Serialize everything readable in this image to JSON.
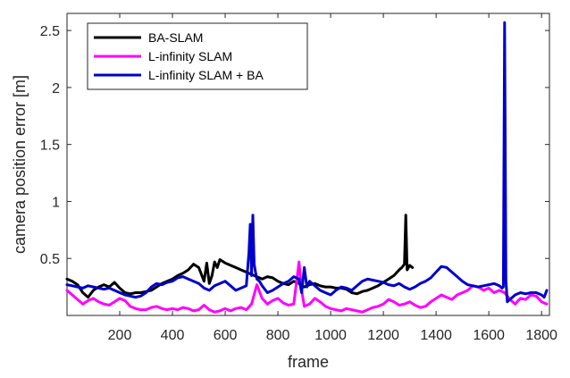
{
  "chart_data": {
    "type": "line",
    "xlabel": "frame",
    "ylabel": "camera position error [m]",
    "xlim": [
      0,
      1830
    ],
    "ylim": [
      0,
      2.65
    ],
    "xticks": [
      200,
      400,
      600,
      800,
      1000,
      1200,
      1400,
      1600,
      1800
    ],
    "yticks": [
      0.5,
      1,
      1.5,
      2,
      2.5
    ],
    "xtick_labels": [
      "200",
      "400",
      "600",
      "800",
      "1000",
      "1200",
      "1400",
      "1600",
      "1800"
    ],
    "ytick_labels": [
      "0.5",
      "1",
      "1.5",
      "2",
      "2.5"
    ],
    "grid": false,
    "legend_position": "top-left",
    "series": [
      {
        "name": "BA-SLAM",
        "color": "#000000",
        "x": [
          0,
          20,
          40,
          60,
          80,
          100,
          120,
          140,
          160,
          180,
          200,
          220,
          240,
          260,
          280,
          300,
          320,
          340,
          360,
          380,
          400,
          420,
          440,
          460,
          480,
          500,
          520,
          530,
          540,
          550,
          560,
          570,
          580,
          600,
          620,
          640,
          660,
          680,
          700,
          720,
          740,
          760,
          780,
          800,
          820,
          840,
          860,
          880,
          900,
          920,
          940,
          960,
          980,
          1000,
          1020,
          1040,
          1060,
          1080,
          1100,
          1120,
          1140,
          1160,
          1180,
          1200,
          1220,
          1240,
          1260,
          1270,
          1280,
          1285,
          1290,
          1300,
          1310
        ],
        "values": [
          0.32,
          0.3,
          0.27,
          0.2,
          0.16,
          0.22,
          0.25,
          0.27,
          0.25,
          0.29,
          0.24,
          0.2,
          0.19,
          0.2,
          0.2,
          0.21,
          0.22,
          0.25,
          0.28,
          0.3,
          0.32,
          0.35,
          0.37,
          0.4,
          0.45,
          0.42,
          0.3,
          0.46,
          0.28,
          0.35,
          0.47,
          0.42,
          0.49,
          0.46,
          0.44,
          0.42,
          0.4,
          0.38,
          0.36,
          0.34,
          0.32,
          0.34,
          0.33,
          0.3,
          0.28,
          0.27,
          0.3,
          0.28,
          0.25,
          0.27,
          0.28,
          0.26,
          0.25,
          0.25,
          0.24,
          0.24,
          0.23,
          0.2,
          0.19,
          0.21,
          0.22,
          0.24,
          0.26,
          0.29,
          0.32,
          0.35,
          0.4,
          0.42,
          0.45,
          0.88,
          0.4,
          0.44,
          0.42
        ]
      },
      {
        "name": "L-infinity SLAM",
        "color": "#ff00ff",
        "x": [
          0,
          20,
          40,
          60,
          80,
          100,
          120,
          140,
          160,
          180,
          200,
          220,
          240,
          260,
          280,
          300,
          320,
          340,
          360,
          380,
          400,
          420,
          440,
          460,
          480,
          500,
          520,
          540,
          560,
          580,
          600,
          620,
          640,
          660,
          680,
          700,
          720,
          740,
          760,
          780,
          800,
          820,
          840,
          860,
          870,
          880,
          890,
          900,
          920,
          940,
          960,
          980,
          1000,
          1020,
          1040,
          1060,
          1080,
          1100,
          1120,
          1140,
          1160,
          1180,
          1200,
          1220,
          1240,
          1260,
          1280,
          1300,
          1320,
          1340,
          1360,
          1380,
          1400,
          1420,
          1440,
          1460,
          1480,
          1500,
          1520,
          1540,
          1560,
          1580,
          1600,
          1620,
          1640,
          1660,
          1680,
          1700,
          1720,
          1740,
          1760,
          1780,
          1800,
          1820
        ],
        "values": [
          0.22,
          0.18,
          0.14,
          0.1,
          0.13,
          0.15,
          0.12,
          0.1,
          0.09,
          0.12,
          0.15,
          0.13,
          0.08,
          0.06,
          0.05,
          0.05,
          0.07,
          0.08,
          0.06,
          0.05,
          0.06,
          0.05,
          0.07,
          0.06,
          0.04,
          0.05,
          0.09,
          0.05,
          0.03,
          0.04,
          0.06,
          0.04,
          0.06,
          0.07,
          0.05,
          0.1,
          0.27,
          0.15,
          0.1,
          0.13,
          0.15,
          0.11,
          0.09,
          0.1,
          0.28,
          0.47,
          0.22,
          0.08,
          0.1,
          0.15,
          0.12,
          0.08,
          0.06,
          0.05,
          0.04,
          0.06,
          0.05,
          0.04,
          0.03,
          0.05,
          0.07,
          0.08,
          0.1,
          0.14,
          0.12,
          0.09,
          0.1,
          0.12,
          0.09,
          0.07,
          0.08,
          0.12,
          0.15,
          0.18,
          0.16,
          0.14,
          0.18,
          0.2,
          0.22,
          0.26,
          0.25,
          0.22,
          0.24,
          0.2,
          0.22,
          0.2,
          0.14,
          0.1,
          0.15,
          0.14,
          0.18,
          0.17,
          0.12,
          0.1
        ]
      },
      {
        "name": "L-infinity SLAM + BA",
        "color": "#0000cc",
        "x": [
          0,
          20,
          40,
          60,
          80,
          100,
          120,
          140,
          160,
          180,
          200,
          220,
          240,
          260,
          280,
          300,
          320,
          340,
          360,
          380,
          400,
          420,
          440,
          460,
          480,
          500,
          520,
          540,
          560,
          580,
          600,
          620,
          640,
          660,
          680,
          690,
          695,
          700,
          705,
          710,
          715,
          720,
          730,
          740,
          760,
          780,
          800,
          820,
          840,
          860,
          880,
          890,
          900,
          910,
          920,
          940,
          960,
          980,
          1000,
          1020,
          1040,
          1060,
          1080,
          1100,
          1120,
          1140,
          1160,
          1180,
          1200,
          1220,
          1240,
          1260,
          1280,
          1300,
          1320,
          1340,
          1360,
          1380,
          1400,
          1420,
          1440,
          1460,
          1480,
          1500,
          1520,
          1540,
          1560,
          1580,
          1600,
          1620,
          1640,
          1650,
          1655,
          1660,
          1665,
          1670,
          1680,
          1700,
          1720,
          1740,
          1760,
          1780,
          1800,
          1810,
          1820
        ],
        "values": [
          0.27,
          0.26,
          0.25,
          0.24,
          0.26,
          0.25,
          0.24,
          0.23,
          0.24,
          0.22,
          0.2,
          0.18,
          0.17,
          0.16,
          0.17,
          0.2,
          0.25,
          0.28,
          0.27,
          0.29,
          0.3,
          0.33,
          0.34,
          0.32,
          0.3,
          0.28,
          0.24,
          0.22,
          0.26,
          0.28,
          0.3,
          0.26,
          0.22,
          0.24,
          0.26,
          0.55,
          0.8,
          0.35,
          0.88,
          0.45,
          0.38,
          0.32,
          0.3,
          0.26,
          0.2,
          0.22,
          0.25,
          0.28,
          0.3,
          0.34,
          0.32,
          0.2,
          0.42,
          0.25,
          0.3,
          0.26,
          0.22,
          0.2,
          0.18,
          0.22,
          0.25,
          0.24,
          0.22,
          0.26,
          0.3,
          0.32,
          0.31,
          0.3,
          0.29,
          0.27,
          0.26,
          0.28,
          0.25,
          0.23,
          0.25,
          0.28,
          0.3,
          0.33,
          0.38,
          0.43,
          0.42,
          0.38,
          0.34,
          0.3,
          0.27,
          0.26,
          0.25,
          0.26,
          0.27,
          0.28,
          0.26,
          0.24,
          0.25,
          2.57,
          0.3,
          0.12,
          0.14,
          0.18,
          0.2,
          0.19,
          0.2,
          0.2,
          0.18,
          0.16,
          0.22
        ]
      }
    ]
  }
}
